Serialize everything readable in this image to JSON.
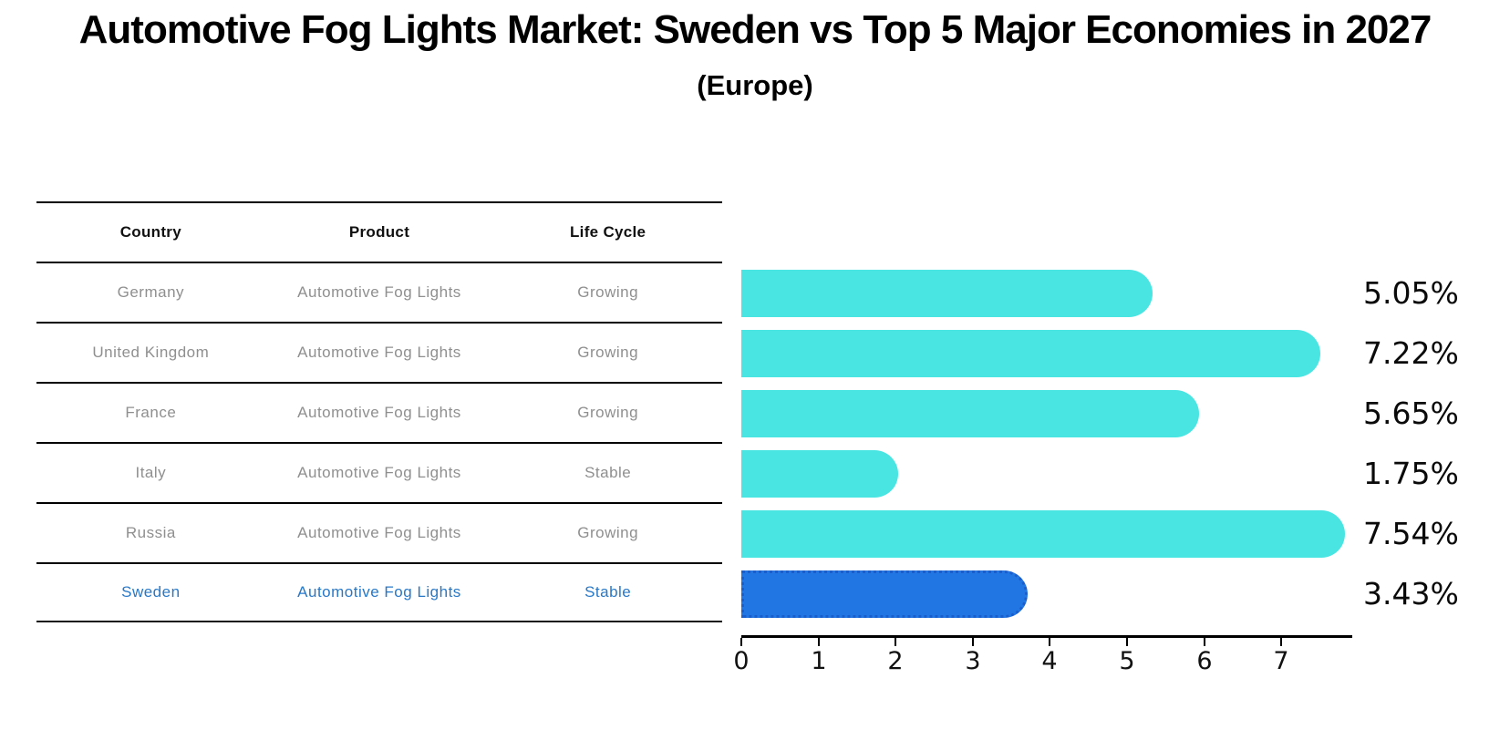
{
  "title": "Automotive Fog Lights Market: Sweden vs Top 5 Major Economies in 2027",
  "subtitle": "(Europe)",
  "table": {
    "headers": [
      "Country",
      "Product",
      "Life Cycle"
    ],
    "rows": [
      {
        "country": "Germany",
        "product": "Automotive Fog Lights",
        "life_cycle": "Growing",
        "highlighted": false
      },
      {
        "country": "United Kingdom",
        "product": "Automotive Fog Lights",
        "life_cycle": "Growing",
        "highlighted": false
      },
      {
        "country": "France",
        "product": "Automotive Fog Lights",
        "life_cycle": "Growing",
        "highlighted": false
      },
      {
        "country": "Italy",
        "product": "Automotive Fog Lights",
        "life_cycle": "Stable",
        "highlighted": false
      },
      {
        "country": "Russia",
        "product": "Automotive Fog Lights",
        "life_cycle": "Growing",
        "highlighted": false
      },
      {
        "country": "Sweden",
        "product": "Automotive Fog Lights",
        "life_cycle": "Stable",
        "highlighted": true
      }
    ]
  },
  "chart_data": {
    "type": "bar",
    "orientation": "horizontal",
    "title": "Automotive Fog Lights Market: Sweden vs Top 5 Major Economies in 2027 (Europe)",
    "categories": [
      "Germany",
      "United Kingdom",
      "France",
      "Italy",
      "Russia",
      "Sweden"
    ],
    "values": [
      5.05,
      7.22,
      5.65,
      1.75,
      7.54,
      3.43
    ],
    "value_labels": [
      "5.05%",
      "7.22%",
      "5.65%",
      "1.75%",
      "7.54%",
      "3.43%"
    ],
    "unit": "%",
    "x_ticks": [
      0,
      1,
      2,
      3,
      4,
      5,
      6,
      7
    ],
    "xlim": [
      0,
      7.92
    ],
    "grid": false,
    "legend": "none",
    "bar_color": "#48e5e2",
    "highlight_color": "#2276e4",
    "highlight_index": 5,
    "highlight_text_color": "#2878c8"
  }
}
